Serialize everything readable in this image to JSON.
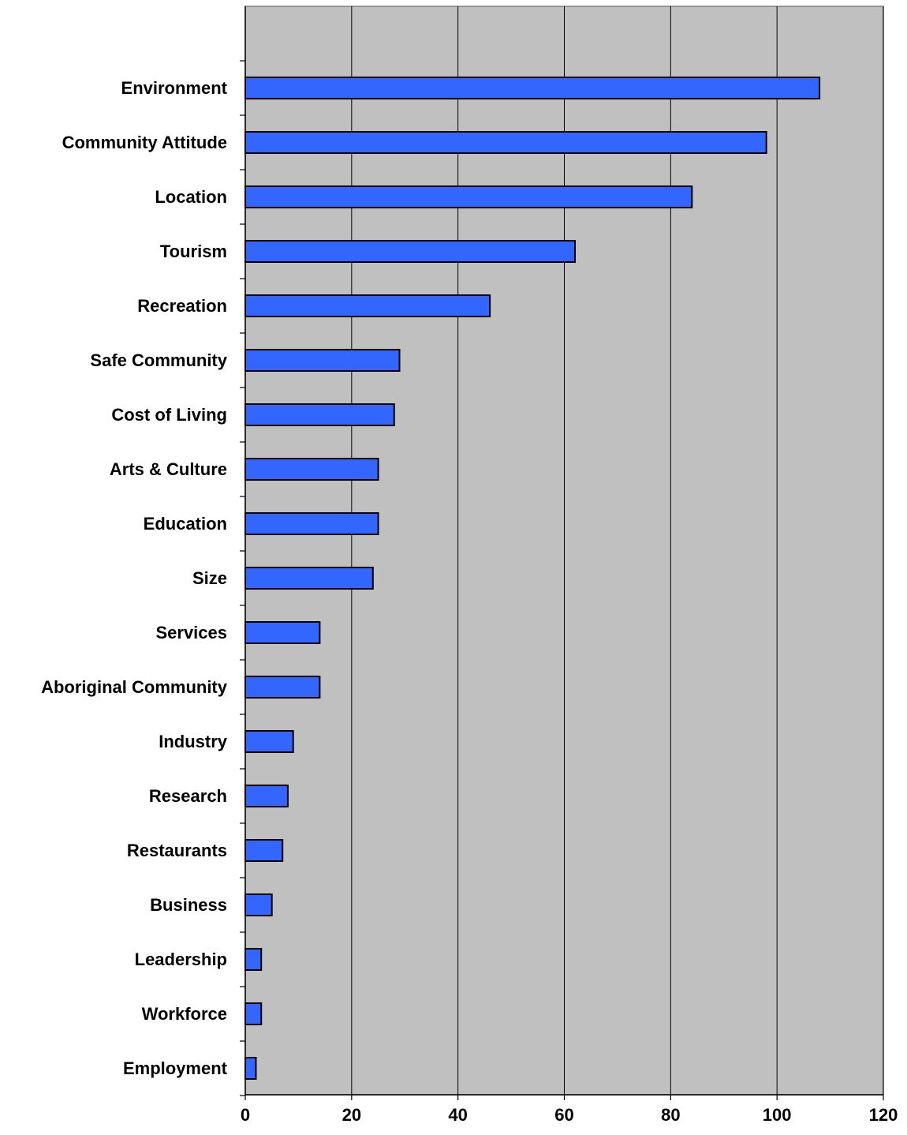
{
  "chart_data": {
    "type": "bar",
    "orientation": "horizontal",
    "title": "",
    "xlabel": "",
    "ylabel": "",
    "xlim": [
      0,
      120
    ],
    "ticks": [
      0,
      20,
      40,
      60,
      80,
      100,
      120
    ],
    "grid": "vertical",
    "legend": "none",
    "categories": [
      "Environment",
      "Community Attitude",
      "Location",
      "Tourism",
      "Recreation",
      "Safe Community",
      "Cost of Living",
      "Arts & Culture",
      "Education",
      "Size",
      "Services",
      "Aboriginal Community",
      "Industry",
      "Research",
      "Restaurants",
      "Business",
      "Leadership",
      "Workforce",
      "Employment"
    ],
    "values": [
      108,
      98,
      84,
      62,
      46,
      29,
      28,
      25,
      25,
      24,
      14,
      14,
      9,
      8,
      7,
      5,
      3,
      3,
      2
    ],
    "colors": {
      "bar": "#3366ff",
      "plot_background": "#c0c0c0",
      "gridline": "#000000",
      "axis": "#000000"
    }
  }
}
